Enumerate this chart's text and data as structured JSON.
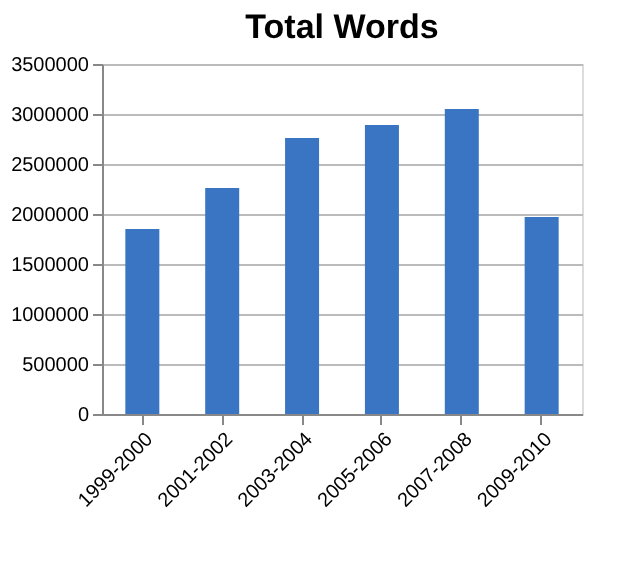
{
  "chart_data": {
    "type": "bar",
    "title": "Total Words",
    "categories": [
      "1999-2000",
      "2001-2002",
      "2003-2004",
      "2005-2006",
      "2007-2008",
      "2009-2010"
    ],
    "values": [
      1850000,
      2260000,
      2760000,
      2890000,
      3050000,
      1970000
    ],
    "color": "#3a75c4",
    "ylim": [
      0,
      3500000
    ],
    "yticks": [
      0,
      500000,
      1000000,
      1500000,
      2000000,
      2500000,
      3000000,
      3500000
    ],
    "grid": "y"
  }
}
